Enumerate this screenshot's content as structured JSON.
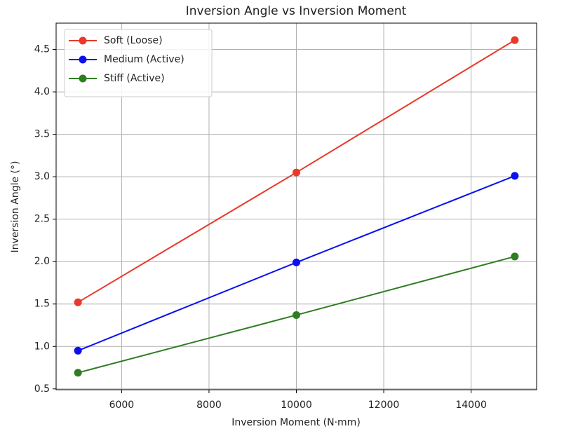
{
  "chart_data": {
    "type": "line",
    "title": "Inversion Angle vs Inversion Moment",
    "xlabel": "Inversion Moment (N·mm)",
    "ylabel": "Inversion Angle (°)",
    "x": [
      5000,
      10000,
      15000
    ],
    "series": [
      {
        "name": "Soft (Loose)",
        "color": "#e8392a",
        "values": [
          1.52,
          3.05,
          4.61
        ]
      },
      {
        "name": "Medium (Active)",
        "color": "#0a10f0",
        "values": [
          0.95,
          1.99,
          3.01
        ]
      },
      {
        "name": "Stiff (Active)",
        "color": "#2f7d22",
        "values": [
          0.69,
          1.37,
          2.06
        ]
      }
    ],
    "xlim": [
      4500,
      15500
    ],
    "xticks": [
      6000,
      8000,
      10000,
      12000,
      14000
    ],
    "ylim": [
      0.49,
      4.81
    ],
    "yticks": [
      0.5,
      {
        "value": 1.0,
        "label": "1.0"
      },
      1.5,
      {
        "value": 2.0,
        "label": "2.0"
      },
      2.5,
      {
        "value": 3.0,
        "label": "3.0"
      },
      3.5,
      {
        "value": 4.0,
        "label": "4.0"
      },
      4.5
    ],
    "grid": true,
    "legend": "upper left"
  }
}
